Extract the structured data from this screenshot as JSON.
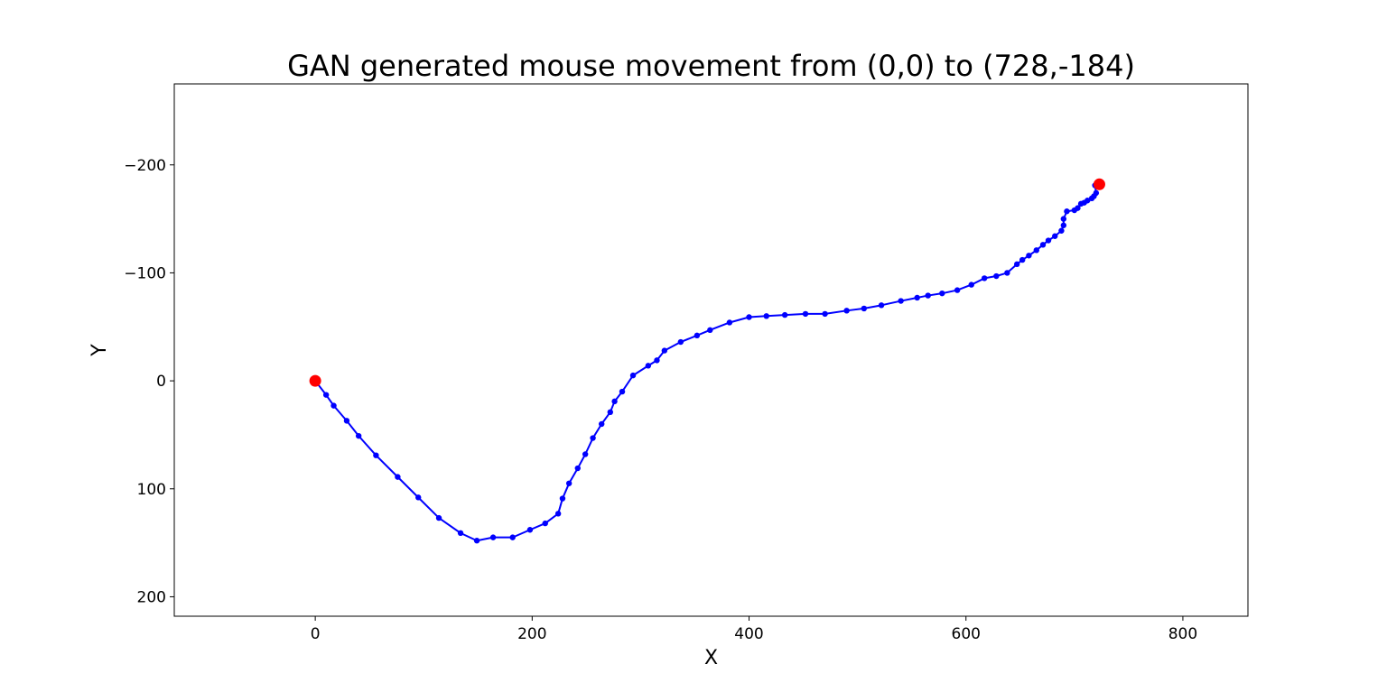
{
  "chart_data": {
    "type": "line",
    "title": "GAN generated mouse movement from (0,0) to (728,-184)",
    "xlabel": "X",
    "ylabel": "Y",
    "xlim": [
      -130,
      860
    ],
    "ylim": [
      218,
      -275
    ],
    "y_inverted": true,
    "grid": false,
    "x_ticks": [
      {
        "value": 0,
        "label": "0"
      },
      {
        "value": 200,
        "label": "200"
      },
      {
        "value": 400,
        "label": "400"
      },
      {
        "value": 600,
        "label": "600"
      },
      {
        "value": 800,
        "label": "800"
      }
    ],
    "y_ticks": [
      {
        "value": -200,
        "label": "−200"
      },
      {
        "value": -100,
        "label": "−100"
      },
      {
        "value": 0,
        "label": "0"
      },
      {
        "value": 100,
        "label": "100"
      },
      {
        "value": 200,
        "label": "200"
      }
    ],
    "path": {
      "color": "#0000ff",
      "x": [
        0,
        10,
        17,
        29,
        40,
        56,
        76,
        95,
        114,
        134,
        149,
        164,
        182,
        198,
        212,
        224,
        228,
        234,
        242,
        249,
        256,
        264,
        272,
        276,
        283,
        293,
        307,
        315,
        322,
        337,
        352,
        364,
        382,
        400,
        416,
        433,
        452,
        470,
        490,
        506,
        522,
        540,
        555,
        565,
        578,
        592,
        605,
        617,
        628,
        638,
        647,
        652,
        658,
        665,
        671,
        676,
        682,
        688,
        690,
        690,
        693,
        700,
        703,
        706,
        709,
        712,
        716,
        718,
        720,
        719,
        723
      ],
      "y": [
        0,
        13,
        23,
        37,
        51,
        69,
        89,
        108,
        127,
        141,
        148,
        145,
        145,
        138,
        132,
        123,
        109,
        95,
        81,
        68,
        53,
        40,
        29,
        19,
        10,
        -5,
        -14,
        -19,
        -28,
        -36,
        -42,
        -47,
        -54,
        -59,
        -60,
        -61,
        -62,
        -62,
        -65,
        -67,
        -70,
        -74,
        -77,
        -79,
        -81,
        -84,
        -89,
        -95,
        -97,
        -100,
        -108,
        -112,
        -116,
        -121,
        -126,
        -130,
        -134,
        -139,
        -144,
        -150,
        -157,
        -158,
        -160,
        -164,
        -165,
        -167,
        -169,
        -171,
        -174,
        -181,
        -182
      ]
    },
    "markers": {
      "color": "#ff0000",
      "points": [
        {
          "x": 0,
          "y": 0
        },
        {
          "x": 723,
          "y": -182
        }
      ]
    }
  }
}
